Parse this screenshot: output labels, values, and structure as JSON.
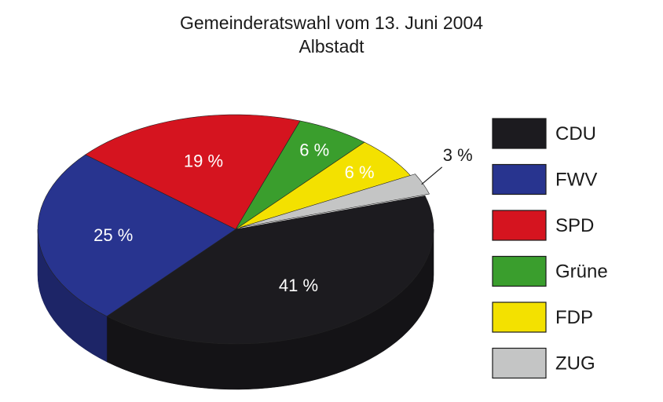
{
  "chart_data": {
    "type": "pie",
    "title": "Gemeinderatswahl vom 13. Juni 2004",
    "subtitle": "Albstadt",
    "legend_position": "right",
    "slices": [
      {
        "label": "CDU",
        "value": 41,
        "display": "41 %",
        "color": "#1c1b1f"
      },
      {
        "label": "FWV",
        "value": 25,
        "display": "25 %",
        "color": "#28348f"
      },
      {
        "label": "SPD",
        "value": 19,
        "display": "19 %",
        "color": "#d5141f"
      },
      {
        "label": "Grüne",
        "value": 6,
        "display": "6 %",
        "color": "#3a9e2d"
      },
      {
        "label": "FDP",
        "value": 6,
        "display": "6 %",
        "color": "#f3e100"
      },
      {
        "label": "ZUG",
        "value": 3,
        "display": "3 %",
        "color": "#c4c5c5"
      }
    ]
  }
}
